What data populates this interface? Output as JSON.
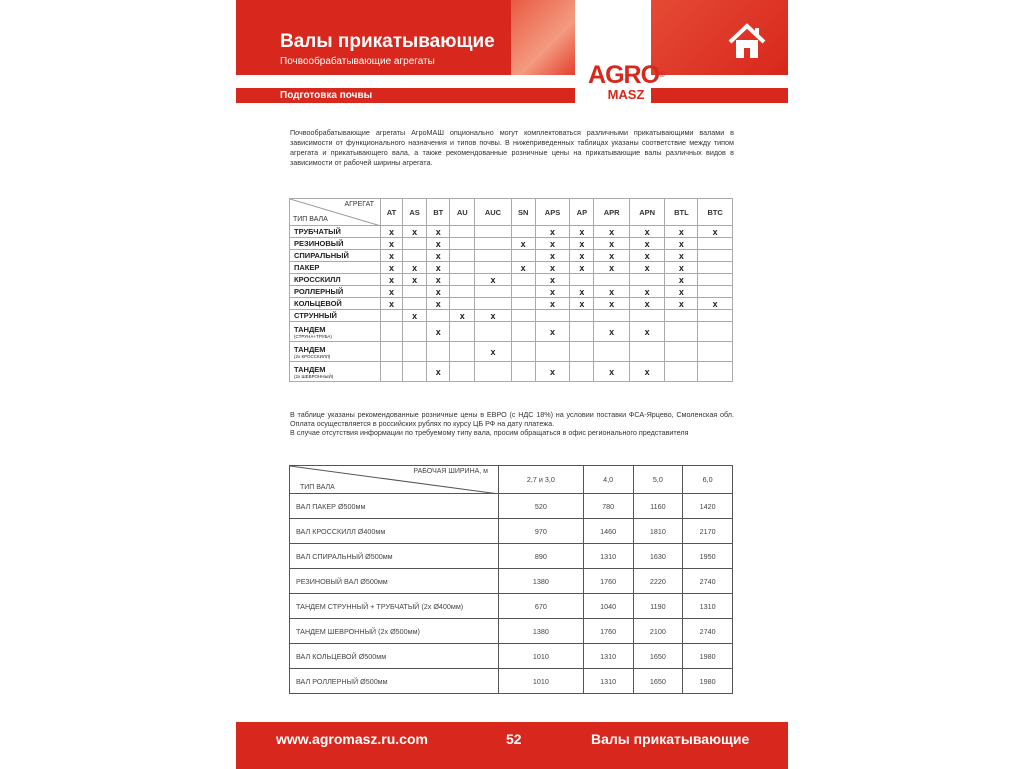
{
  "header": {
    "title": "Валы прикатывающие",
    "subtitle": "Почвообрабатывающие агрегаты",
    "section": "Подготовка почвы",
    "logo_top": "AGRO",
    "logo_bottom": "MASZ",
    "logo_mark": "®",
    "home_icon": "home-icon"
  },
  "intro": "Почвообрабатывающие агрегаты АгроМАШ опционально могут комплектоваться различными прикатывающими валами в зависимости от функционального назначения и типов почвы. В нижеприведенных таблицах указаны соответствие между типом агрегата и прикатывающего вала, а также рекомендованные розничные цены на прикатывающие валы различных видов в зависимости от рабочей ширины агрегата.",
  "matrix": {
    "corner_top": "АГРЕГАТ",
    "corner_bottom": "ТИП ВАЛА",
    "mark": "x",
    "columns": [
      "AT",
      "AS",
      "BT",
      "AU",
      "AUC",
      "SN",
      "APS",
      "AP",
      "APR",
      "APN",
      "BTL",
      "BTC"
    ],
    "rows": [
      {
        "name": "ТРУБЧАТЫЙ",
        "sub": "",
        "marks": [
          1,
          1,
          1,
          0,
          0,
          0,
          1,
          1,
          1,
          1,
          1,
          1
        ]
      },
      {
        "name": "РЕЗИНОВЫЙ",
        "sub": "",
        "marks": [
          1,
          0,
          1,
          0,
          0,
          1,
          1,
          1,
          1,
          1,
          1,
          0
        ]
      },
      {
        "name": "СПИРАЛЬНЫЙ",
        "sub": "",
        "marks": [
          1,
          0,
          1,
          0,
          0,
          0,
          1,
          1,
          1,
          1,
          1,
          0
        ]
      },
      {
        "name": "ПАКЕР",
        "sub": "",
        "marks": [
          1,
          1,
          1,
          0,
          0,
          1,
          1,
          1,
          1,
          1,
          1,
          0
        ]
      },
      {
        "name": "КРОССКИЛЛ",
        "sub": "",
        "marks": [
          1,
          1,
          1,
          0,
          1,
          0,
          1,
          0,
          0,
          0,
          1,
          0
        ]
      },
      {
        "name": "РОЛЛЕРНЫЙ",
        "sub": "",
        "marks": [
          1,
          0,
          1,
          0,
          0,
          0,
          1,
          1,
          1,
          1,
          1,
          0
        ]
      },
      {
        "name": "КОЛЬЦЕВОЙ",
        "sub": "",
        "marks": [
          1,
          0,
          1,
          0,
          0,
          0,
          1,
          1,
          1,
          1,
          1,
          1
        ]
      },
      {
        "name": "СТРУННЫЙ",
        "sub": "",
        "marks": [
          0,
          1,
          0,
          1,
          1,
          0,
          0,
          0,
          0,
          0,
          0,
          0
        ]
      },
      {
        "name": "ТАНДЕМ",
        "sub": "(СТРУНА+ТРУБА)",
        "marks": [
          0,
          0,
          1,
          0,
          0,
          0,
          1,
          0,
          1,
          1,
          0,
          0
        ]
      },
      {
        "name": "ТАНДЕМ",
        "sub": "(2х КРОССКИЛЛ)",
        "marks": [
          0,
          0,
          0,
          0,
          1,
          0,
          0,
          0,
          0,
          0,
          0,
          0
        ]
      },
      {
        "name": "ТАНДЕМ",
        "sub": "(2х ШЕВРОННЫЙ)",
        "marks": [
          0,
          0,
          1,
          0,
          0,
          0,
          1,
          0,
          1,
          1,
          0,
          0
        ]
      }
    ]
  },
  "note": {
    "p1": "В таблице указаны рекомендованные розничные цены в ЕВРО (с НДС 18%) на условии поставки ФСА-Ярцево, Смоленская обл. Оплата осуществляется в российских рублях по курсу ЦБ РФ на дату платежа.",
    "p2": "В случае отсутствия информации по требуемому типу вала, просим обращаться в офис регионального представителя"
  },
  "prices": {
    "corner_top": "РАБОЧАЯ ШИРИНА, м",
    "corner_bottom": "ТИП ВАЛА",
    "columns": [
      "2,7 и 3,0",
      "4,0",
      "5,0",
      "6,0"
    ],
    "rows": [
      {
        "name": "ВАЛ ПАКЕР Ø500мм",
        "values": [
          "520",
          "780",
          "1160",
          "1420"
        ]
      },
      {
        "name": "ВАЛ КРОССКИЛЛ Ø400мм",
        "values": [
          "970",
          "1460",
          "1810",
          "2170"
        ]
      },
      {
        "name": "ВАЛ СПИРАЛЬНЫЙ Ø500мм",
        "values": [
          "890",
          "1310",
          "1630",
          "1950"
        ]
      },
      {
        "name": "РЕЗИНОВЫЙ ВАЛ Ø500мм",
        "values": [
          "1380",
          "1760",
          "2220",
          "2740"
        ]
      },
      {
        "name": "ТАНДЕМ СТРУННЫЙ + ТРУБЧАТЫЙ (2х Ø400мм)",
        "values": [
          "670",
          "1040",
          "1190",
          "1310"
        ]
      },
      {
        "name": "ТАНДЕМ ШЕВРОННЫЙ (2х Ø500мм)",
        "values": [
          "1380",
          "1760",
          "2100",
          "2740"
        ]
      },
      {
        "name": "ВАЛ КОЛЬЦЕВОЙ Ø500мм",
        "values": [
          "1010",
          "1310",
          "1650",
          "1980"
        ]
      },
      {
        "name": "ВАЛ РОЛЛЕРНЫЙ  Ø500мм",
        "values": [
          "1010",
          "1310",
          "1650",
          "1980"
        ]
      }
    ]
  },
  "footer": {
    "url": "www.agromasz.ru.com",
    "page": "52",
    "section": "Валы прикатывающие"
  },
  "colors": {
    "brand_red": "#d8271c"
  }
}
